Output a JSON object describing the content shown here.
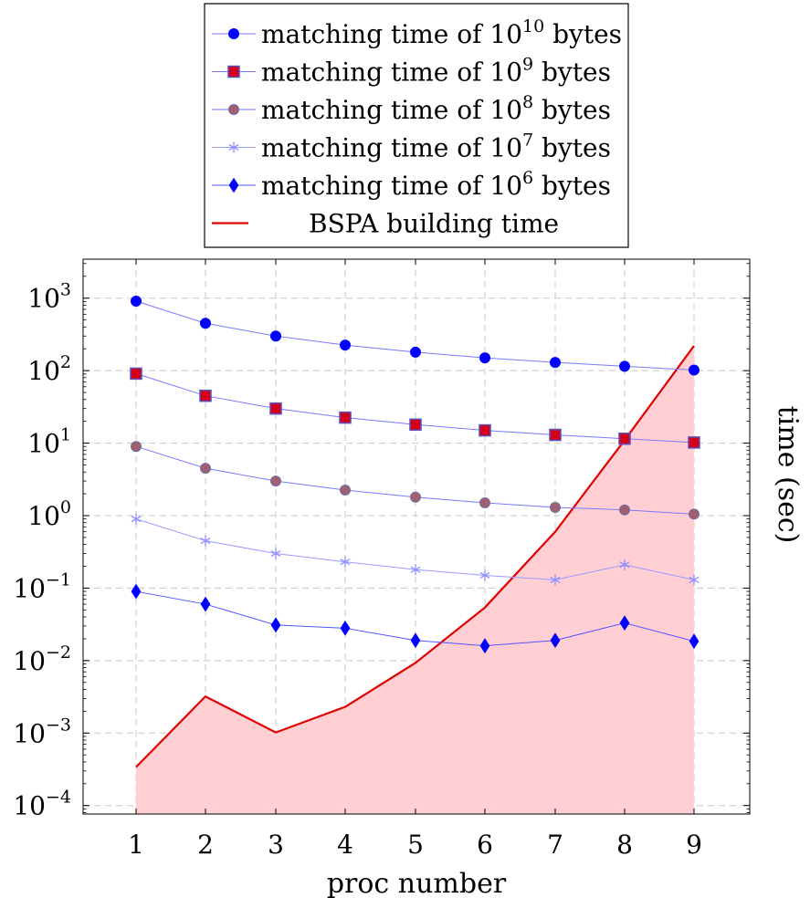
{
  "chart_data": {
    "type": "line",
    "x_scale": "linear",
    "y_scale": "log",
    "xlabel": "proc number",
    "ylabel": "time (sec)",
    "x": [
      1,
      2,
      3,
      4,
      5,
      6,
      7,
      8,
      9
    ],
    "x_ticks": [
      "1",
      "2",
      "3",
      "4",
      "5",
      "6",
      "7",
      "8",
      "9"
    ],
    "xlim": [
      0.25,
      9.8
    ],
    "ylim": [
      8e-05,
      4000
    ],
    "y_ticks": [
      {
        "value": 0.0001,
        "base": "10",
        "exp": "−4"
      },
      {
        "value": 0.001,
        "base": "10",
        "exp": "−3"
      },
      {
        "value": 0.01,
        "base": "10",
        "exp": "−2"
      },
      {
        "value": 0.1,
        "base": "10",
        "exp": "−1"
      },
      {
        "value": 1,
        "base": "10",
        "exp": "0"
      },
      {
        "value": 10,
        "base": "10",
        "exp": "1"
      },
      {
        "value": 100,
        "base": "10",
        "exp": "2"
      },
      {
        "value": 1000,
        "base": "10",
        "exp": "3"
      }
    ],
    "grid": true,
    "legend_position": "top-center",
    "series": [
      {
        "name": "matching time of 10^10 bytes",
        "legend_prefix": "matching time of 10",
        "legend_exp": "10",
        "legend_suffix": " bytes",
        "marker": "circle",
        "fill": "#0000ff",
        "stroke": "#0000ff",
        "line_color": "#7a7aff",
        "values": [
          910,
          450,
          300,
          225,
          180,
          150,
          130,
          115,
          102
        ]
      },
      {
        "name": "matching time of 10^9 bytes",
        "legend_prefix": "matching time of 10",
        "legend_exp": "9",
        "legend_suffix": " bytes",
        "marker": "square",
        "fill": "#d4001a",
        "stroke": "#5a4fbf",
        "line_color": "#7a7aff",
        "values": [
          91,
          45,
          30,
          22.5,
          18,
          15,
          13,
          11.5,
          10.2
        ]
      },
      {
        "name": "matching time of 10^8 bytes",
        "legend_prefix": "matching time of 10",
        "legend_exp": "8",
        "legend_suffix": " bytes",
        "marker": "circle",
        "fill": "#a06070",
        "stroke": "#6f6fa8",
        "line_color": "#7a7aff",
        "values": [
          9.0,
          4.5,
          3.0,
          2.25,
          1.8,
          1.5,
          1.3,
          1.2,
          1.05
        ]
      },
      {
        "name": "matching time of 10^7 bytes",
        "legend_prefix": "matching time of 10",
        "legend_exp": "7",
        "legend_suffix": " bytes",
        "marker": "star",
        "fill": "#8f8fff",
        "stroke": "#8f8fff",
        "line_color": "#9a9aff",
        "values": [
          0.9,
          0.45,
          0.3,
          0.23,
          0.18,
          0.15,
          0.13,
          0.21,
          0.13
        ]
      },
      {
        "name": "matching time of 10^6 bytes",
        "legend_prefix": "matching time of 10",
        "legend_exp": "6",
        "legend_suffix": " bytes",
        "marker": "diamond",
        "fill": "#0000ff",
        "stroke": "#0000ff",
        "line_color": "#5555ff",
        "values": [
          0.09,
          0.06,
          0.031,
          0.028,
          0.019,
          0.016,
          0.019,
          0.033,
          0.0185
        ]
      },
      {
        "name": "BSPA building time",
        "legend_prefix": "BSPA building time",
        "legend_exp": "",
        "legend_suffix": "",
        "marker": "none",
        "fill": "#ffcfd4",
        "stroke": "#e00000",
        "line_color": "#e00000",
        "area": true,
        "values": [
          0.00034,
          0.0032,
          0.00102,
          0.0023,
          0.0093,
          0.054,
          0.6,
          11,
          220
        ]
      }
    ]
  }
}
